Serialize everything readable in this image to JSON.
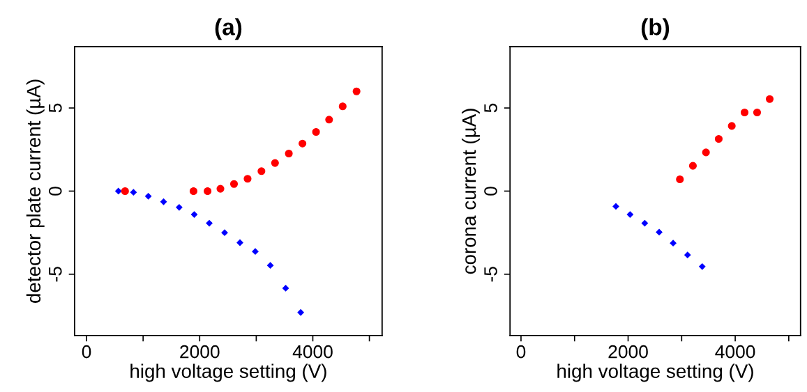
{
  "chart_data": [
    {
      "type": "scatter",
      "title": "(a)",
      "xlabel": "high voltage setting (V)",
      "ylabel": "detector plate current (µA)",
      "xlim": [
        -210,
        5225
      ],
      "ylim": [
        -8.69,
        8.69
      ],
      "xticks": [
        0,
        {
          "value": 1000,
          "label": null
        },
        2000,
        {
          "value": 3000,
          "label": null
        },
        4000,
        {
          "value": 5000,
          "label": null
        }
      ],
      "yticks": [
        -5,
        0,
        5
      ],
      "grid": false,
      "legend": false,
      "series": [
        {
          "color": "#0000ff",
          "marker": "diamond",
          "x": [
            563,
            830,
            1092,
            1362,
            1638,
            1904,
            2170,
            2441,
            2712,
            2983,
            3249,
            3520,
            3786
          ],
          "values": [
            0,
            -0.07,
            -0.31,
            -0.64,
            -0.98,
            -1.41,
            -1.93,
            -2.5,
            -3.1,
            -3.63,
            -4.47,
            -5.84,
            -7.3
          ]
        },
        {
          "color": "#ff0000",
          "marker": "circle",
          "x": [
            681,
            1891,
            2140,
            2367,
            2607,
            2847,
            3092,
            3332,
            3576,
            3817,
            4057,
            4288,
            4528,
            4773
          ],
          "values": [
            0,
            0,
            0,
            0.14,
            0.43,
            0.74,
            1.2,
            1.69,
            2.26,
            2.86,
            3.56,
            4.3,
            5.1,
            6.0
          ]
        }
      ]
    },
    {
      "type": "scatter",
      "title": "(b)",
      "xlabel": "high voltage setting (V)",
      "ylabel": "corona current (µA)",
      "xlim": [
        -205,
        5220
      ],
      "ylim": [
        -8.69,
        8.69
      ],
      "xticks": [
        0,
        {
          "value": 1000,
          "label": null
        },
        2000,
        {
          "value": 3000,
          "label": null
        },
        4000,
        {
          "value": 5000,
          "label": null
        }
      ],
      "yticks": [
        -5,
        0,
        5
      ],
      "grid": false,
      "legend": false,
      "series": [
        {
          "color": "#0000ff",
          "marker": "diamond",
          "x": [
            1772,
            2037,
            2311,
            2580,
            2841,
            3110,
            3384
          ],
          "values": [
            -0.92,
            -1.41,
            -1.93,
            -2.47,
            -3.13,
            -3.84,
            -4.54
          ]
        },
        {
          "color": "#ff0000",
          "marker": "circle",
          "x": [
            2967,
            3210,
            3454,
            3692,
            3936,
            4175,
            4409,
            4644
          ],
          "values": [
            0.71,
            1.52,
            2.33,
            3.14,
            3.92,
            4.73,
            4.73,
            5.54
          ]
        }
      ]
    }
  ]
}
